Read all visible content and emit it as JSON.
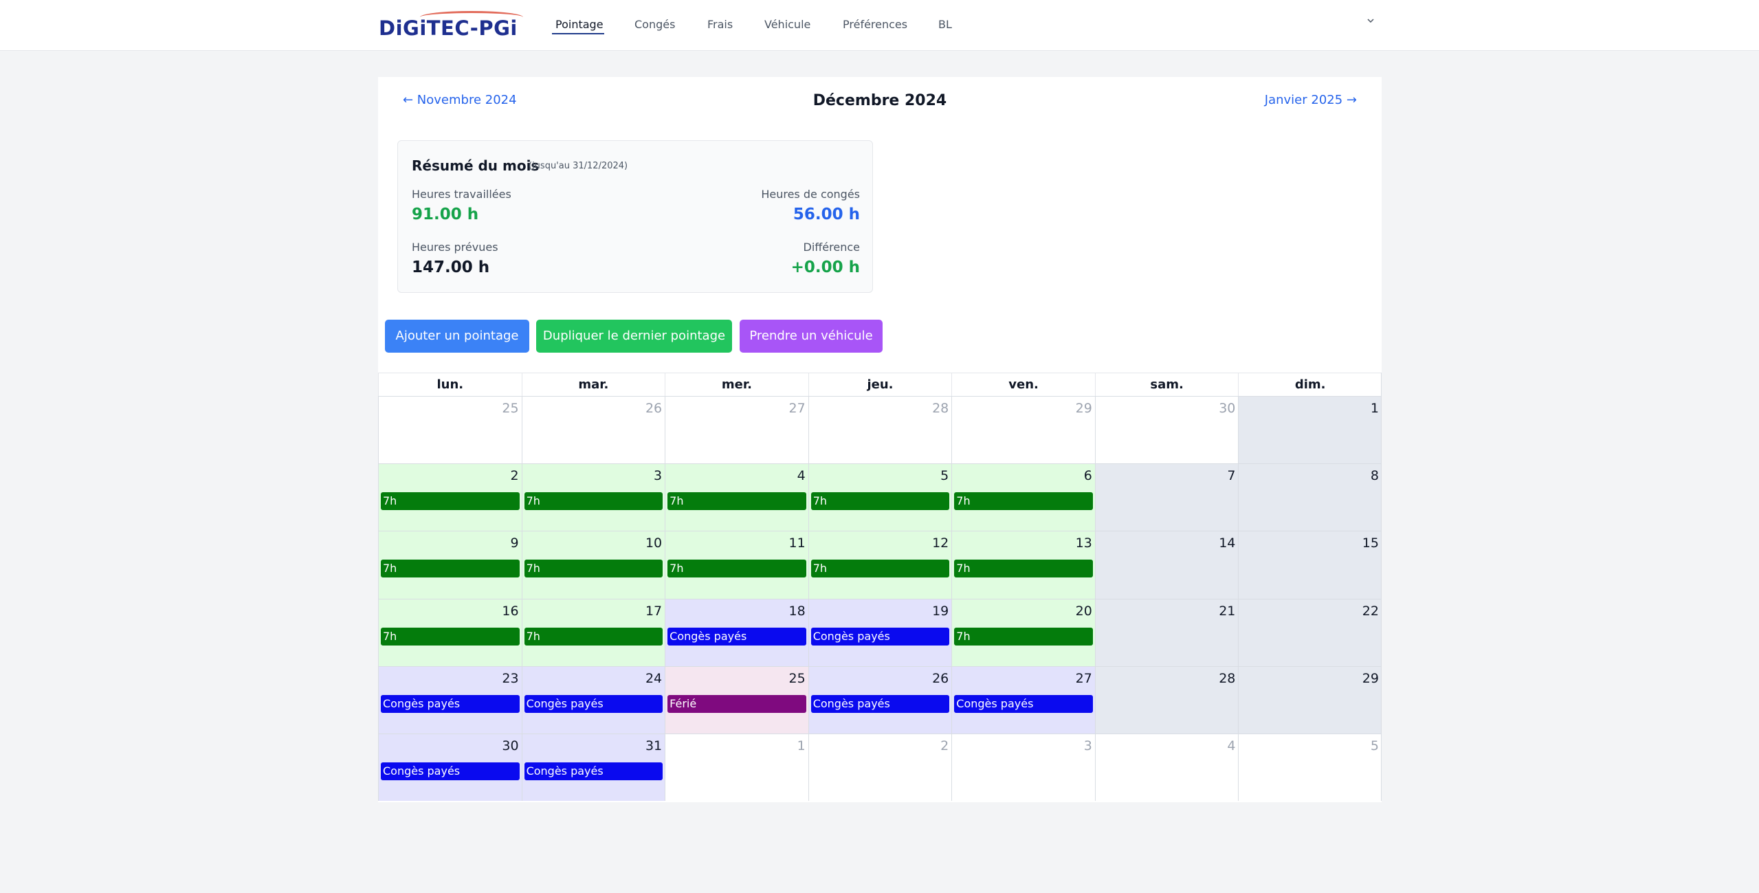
{
  "header": {
    "logo_text": "DiGiTEC-PGi",
    "nav": [
      {
        "label": "Pointage",
        "active": true
      },
      {
        "label": "Congés"
      },
      {
        "label": "Frais"
      },
      {
        "label": "Véhicule"
      },
      {
        "label": "Préférences"
      },
      {
        "label": "BL"
      }
    ],
    "user_menu_icon": "chevron-down-icon"
  },
  "month_nav": {
    "prev": "← Novembre 2024",
    "title": "Décembre 2024",
    "next": "Janvier 2025 →"
  },
  "summary": {
    "title": "Résumé du mois",
    "note": "(jusqu'au 31/12/2024)",
    "worked_label": "Heures travaillées",
    "worked_value": "91.00 h",
    "leave_label": "Heures de congés",
    "leave_value": "56.00 h",
    "planned_label": "Heures prévues",
    "planned_value": "147.00 h",
    "diff_label": "Différence",
    "diff_value": "+0.00 h"
  },
  "actions": {
    "add": "Ajouter un pointage",
    "duplicate": "Dupliquer le dernier pointage",
    "vehicle": "Prendre un véhicule"
  },
  "colors": {
    "work_event": "#047c0c",
    "leave_event": "#0a0aef",
    "holiday_event": "#7f0a7f",
    "accent": "#2563eb"
  },
  "calendar": {
    "weekdays": [
      "lun.",
      "mar.",
      "mer.",
      "jeu.",
      "ven.",
      "sam.",
      "dim."
    ],
    "weeks": [
      [
        {
          "day": "25",
          "type": "other"
        },
        {
          "day": "26",
          "type": "other"
        },
        {
          "day": "27",
          "type": "other"
        },
        {
          "day": "28",
          "type": "other"
        },
        {
          "day": "29",
          "type": "other"
        },
        {
          "day": "30",
          "type": "other"
        },
        {
          "day": "1",
          "type": "weekend"
        }
      ],
      [
        {
          "day": "2",
          "type": "work",
          "event": "7h"
        },
        {
          "day": "3",
          "type": "work",
          "event": "7h"
        },
        {
          "day": "4",
          "type": "work",
          "event": "7h"
        },
        {
          "day": "5",
          "type": "work",
          "event": "7h"
        },
        {
          "day": "6",
          "type": "work",
          "event": "7h"
        },
        {
          "day": "7",
          "type": "weekend"
        },
        {
          "day": "8",
          "type": "weekend"
        }
      ],
      [
        {
          "day": "9",
          "type": "work",
          "event": "7h"
        },
        {
          "day": "10",
          "type": "work",
          "event": "7h"
        },
        {
          "day": "11",
          "type": "work",
          "event": "7h"
        },
        {
          "day": "12",
          "type": "work",
          "event": "7h"
        },
        {
          "day": "13",
          "type": "work",
          "event": "7h"
        },
        {
          "day": "14",
          "type": "weekend"
        },
        {
          "day": "15",
          "type": "weekend"
        }
      ],
      [
        {
          "day": "16",
          "type": "work",
          "event": "7h"
        },
        {
          "day": "17",
          "type": "work",
          "event": "7h"
        },
        {
          "day": "18",
          "type": "conge",
          "event": "Congès payés"
        },
        {
          "day": "19",
          "type": "conge",
          "event": "Congès payés"
        },
        {
          "day": "20",
          "type": "work",
          "event": "7h"
        },
        {
          "day": "21",
          "type": "weekend"
        },
        {
          "day": "22",
          "type": "weekend"
        }
      ],
      [
        {
          "day": "23",
          "type": "conge",
          "event": "Congès payés"
        },
        {
          "day": "24",
          "type": "conge",
          "event": "Congès payés"
        },
        {
          "day": "25",
          "type": "ferie",
          "event": "Férié"
        },
        {
          "day": "26",
          "type": "conge",
          "event": "Congès payés"
        },
        {
          "day": "27",
          "type": "conge",
          "event": "Congès payés"
        },
        {
          "day": "28",
          "type": "weekend"
        },
        {
          "day": "29",
          "type": "weekend"
        }
      ],
      [
        {
          "day": "30",
          "type": "conge",
          "event": "Congès payés"
        },
        {
          "day": "31",
          "type": "conge",
          "event": "Congès payés"
        },
        {
          "day": "1",
          "type": "other"
        },
        {
          "day": "2",
          "type": "other"
        },
        {
          "day": "3",
          "type": "other"
        },
        {
          "day": "4",
          "type": "other"
        },
        {
          "day": "5",
          "type": "other"
        }
      ]
    ]
  }
}
